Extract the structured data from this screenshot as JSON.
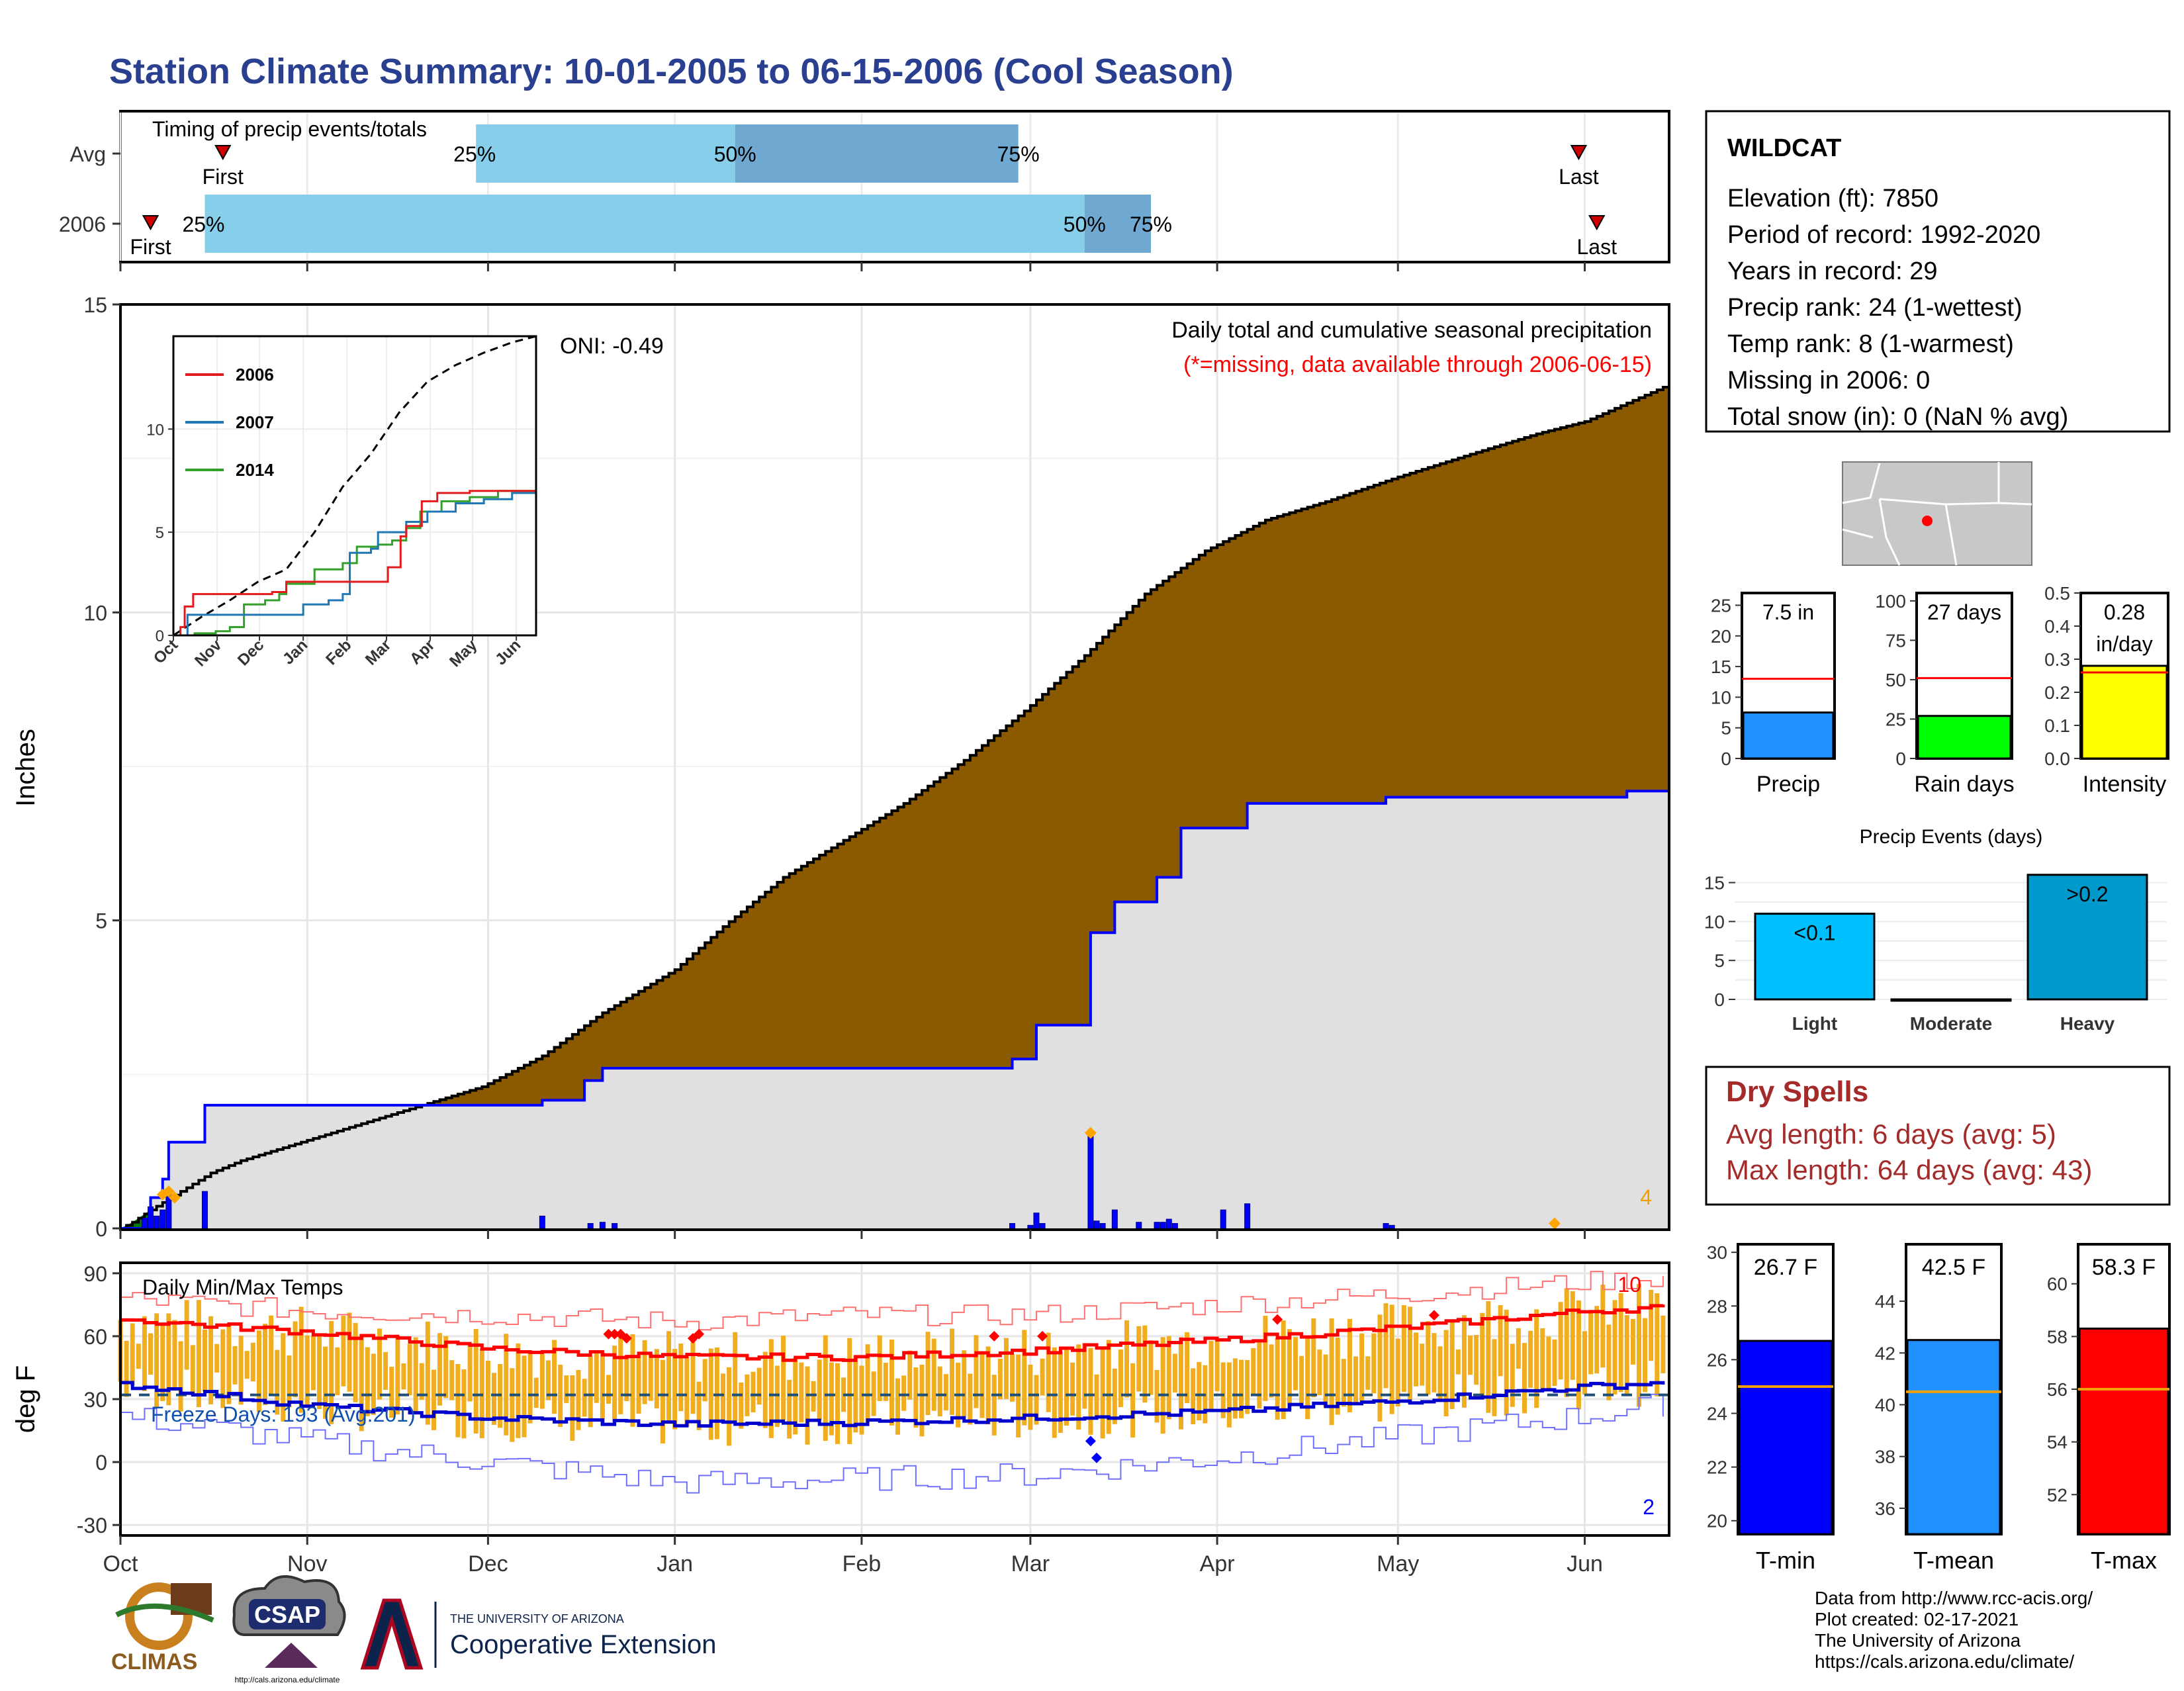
{
  "page_title": "Station Climate Summary: 10-01-2005 to 06-15-2006 (Cool Season)",
  "colors": {
    "title_blue": "#2a3f8f",
    "precip_fill": "#8b5a00",
    "avg_fill": "#e0e0e0",
    "early_fill": "#008000",
    "bar_blue": "#0000ff",
    "temp_bar": "#f0ae1e",
    "dry_red": "#a52a2a",
    "timing_light": "#87ceeb",
    "timing_dark": "#6fa8d0"
  },
  "timing": {
    "title": "Timing of precip events/totals",
    "rows": [
      {
        "label": "Avg",
        "first_day": 17,
        "p25_day": 59,
        "p50_day": 102,
        "p75_day": 149,
        "last_day": 242,
        "first_label": "First",
        "p25_label": "25%",
        "p50_label": "50%",
        "p75_label": "75%",
        "last_label": "Last"
      },
      {
        "label": "2006",
        "first_day": 5,
        "p25_day": 14,
        "p50_day": 160,
        "p75_day": 171,
        "last_day": 245,
        "first_label": "First",
        "p25_label": "25%",
        "p50_label": "50%",
        "p75_label": "75%",
        "last_label": "Last"
      }
    ]
  },
  "chart_data": [
    {
      "type": "area",
      "name": "precip",
      "title": "Daily total and cumulative seasonal precipitation",
      "note": "(*=missing, data available through 2006-06-15)",
      "oni_label": "ONI: -0.49",
      "ylabel": "Inches",
      "ylim": [
        0,
        15
      ],
      "yticks": [
        0,
        5,
        10,
        15
      ],
      "x_months": [
        "Oct",
        "Nov",
        "Dec",
        "Jan",
        "Feb",
        "Mar",
        "Apr",
        "May",
        "Jun"
      ],
      "month_days": [
        0,
        31,
        61,
        92,
        123,
        151,
        182,
        212,
        243
      ],
      "avg_cumulative": [
        [
          0,
          0
        ],
        [
          2,
          0.1
        ],
        [
          5,
          0.3
        ],
        [
          10,
          0.6
        ],
        [
          15,
          0.9
        ],
        [
          20,
          1.1
        ],
        [
          30,
          1.4
        ],
        [
          40,
          1.7
        ],
        [
          50,
          2.0
        ],
        [
          60,
          2.3
        ],
        [
          70,
          2.8
        ],
        [
          80,
          3.5
        ],
        [
          92,
          4.2
        ],
        [
          100,
          4.9
        ],
        [
          110,
          5.7
        ],
        [
          120,
          6.3
        ],
        [
          130,
          6.9
        ],
        [
          140,
          7.6
        ],
        [
          150,
          8.4
        ],
        [
          160,
          9.3
        ],
        [
          170,
          10.3
        ],
        [
          180,
          11.0
        ],
        [
          190,
          11.5
        ],
        [
          200,
          11.8
        ],
        [
          212,
          12.2
        ],
        [
          225,
          12.6
        ],
        [
          235,
          12.9
        ],
        [
          243,
          13.1
        ],
        [
          257,
          13.7
        ]
      ],
      "season_cumulative": [
        [
          0,
          0
        ],
        [
          4,
          0.15
        ],
        [
          5,
          0.5
        ],
        [
          7,
          0.8
        ],
        [
          8,
          1.4
        ],
        [
          14,
          1.4
        ],
        [
          14,
          2.0
        ],
        [
          70,
          2.0
        ],
        [
          70,
          2.08
        ],
        [
          77,
          2.08
        ],
        [
          77,
          2.4
        ],
        [
          80,
          2.4
        ],
        [
          80,
          2.6
        ],
        [
          123,
          2.6
        ],
        [
          148,
          2.6
        ],
        [
          148,
          2.75
        ],
        [
          152,
          2.75
        ],
        [
          152,
          3.3
        ],
        [
          161,
          3.3
        ],
        [
          161,
          4.8
        ],
        [
          165,
          4.8
        ],
        [
          165,
          5.3
        ],
        [
          172,
          5.3
        ],
        [
          172,
          5.7
        ],
        [
          176,
          5.7
        ],
        [
          176,
          6.5
        ],
        [
          187,
          6.5
        ],
        [
          187,
          6.9
        ],
        [
          210,
          6.9
        ],
        [
          210,
          7.0
        ],
        [
          250,
          7.0
        ],
        [
          250,
          7.1
        ],
        [
          257,
          7.5
        ]
      ],
      "daily_bars": [
        [
          4,
          0.15
        ],
        [
          5,
          0.35
        ],
        [
          6,
          0.2
        ],
        [
          7,
          0.3
        ],
        [
          8,
          0.6
        ],
        [
          14,
          0.6
        ],
        [
          70,
          0.2
        ],
        [
          78,
          0.08
        ],
        [
          80,
          0.1
        ],
        [
          82,
          0.08
        ],
        [
          148,
          0.08
        ],
        [
          151,
          0.05
        ],
        [
          152,
          0.25
        ],
        [
          153,
          0.08
        ],
        [
          161,
          1.5
        ],
        [
          162,
          0.12
        ],
        [
          163,
          0.08
        ],
        [
          165,
          0.3
        ],
        [
          169,
          0.1
        ],
        [
          172,
          0.1
        ],
        [
          173,
          0.1
        ],
        [
          174,
          0.15
        ],
        [
          175,
          0.08
        ],
        [
          183,
          0.3
        ],
        [
          187,
          0.4
        ],
        [
          210,
          0.08
        ],
        [
          211,
          0.05
        ]
      ],
      "missing_markers": [
        [
          7,
          0.55
        ],
        [
          8,
          0.6
        ],
        [
          9,
          0.5
        ],
        [
          161,
          1.55
        ],
        [
          238,
          0.08
        ]
      ],
      "corner_count": "4"
    },
    {
      "type": "line",
      "name": "inset",
      "legend": [
        "2006",
        "2007",
        "2014"
      ],
      "xlim": [
        0,
        257
      ],
      "ylim": [
        0,
        14.5
      ],
      "yticks": [
        0,
        5,
        10
      ],
      "x_months": [
        "Oct",
        "Nov",
        "Dec",
        "Jan",
        "Feb",
        "Mar",
        "Apr",
        "May",
        "Jun"
      ],
      "month_days": [
        0,
        31,
        61,
        92,
        123,
        151,
        182,
        212,
        243
      ],
      "avg": [
        [
          0,
          0
        ],
        [
          20,
          0.9
        ],
        [
          40,
          1.7
        ],
        [
          60,
          2.6
        ],
        [
          80,
          3.2
        ],
        [
          100,
          5.0
        ],
        [
          120,
          7.2
        ],
        [
          140,
          8.8
        ],
        [
          160,
          10.8
        ],
        [
          180,
          12.3
        ],
        [
          200,
          13.1
        ],
        [
          220,
          13.7
        ],
        [
          240,
          14.2
        ],
        [
          257,
          14.5
        ]
      ],
      "s2006": [
        [
          0,
          0
        ],
        [
          5,
          0.4
        ],
        [
          8,
          1.4
        ],
        [
          14,
          2.0
        ],
        [
          70,
          2.0
        ],
        [
          70,
          2.1
        ],
        [
          80,
          2.4
        ],
        [
          80,
          2.6
        ],
        [
          148,
          2.6
        ],
        [
          152,
          3.3
        ],
        [
          161,
          3.3
        ],
        [
          161,
          4.8
        ],
        [
          165,
          5.3
        ],
        [
          176,
          6.5
        ],
        [
          187,
          6.9
        ],
        [
          210,
          7.0
        ],
        [
          250,
          7.0
        ],
        [
          257,
          7.5
        ]
      ],
      "s2007": [
        [
          0,
          0
        ],
        [
          10,
          1.0
        ],
        [
          20,
          1.0
        ],
        [
          25,
          1.0
        ],
        [
          60,
          1.0
        ],
        [
          78,
          1.0
        ],
        [
          92,
          1.5
        ],
        [
          110,
          1.7
        ],
        [
          120,
          2.0
        ],
        [
          125,
          4.0
        ],
        [
          140,
          4.2
        ],
        [
          145,
          5.0
        ],
        [
          165,
          5.5
        ],
        [
          180,
          6.0
        ],
        [
          200,
          6.4
        ],
        [
          220,
          6.6
        ],
        [
          240,
          6.9
        ],
        [
          257,
          7.7
        ]
      ],
      "s2014": [
        [
          0,
          0
        ],
        [
          15,
          0.1
        ],
        [
          30,
          0.2
        ],
        [
          40,
          0.4
        ],
        [
          50,
          1.5
        ],
        [
          65,
          1.7
        ],
        [
          75,
          2.0
        ],
        [
          80,
          2.5
        ],
        [
          100,
          3.2
        ],
        [
          120,
          3.5
        ],
        [
          130,
          4.3
        ],
        [
          145,
          4.4
        ],
        [
          155,
          4.6
        ],
        [
          165,
          5.2
        ],
        [
          175,
          6.0
        ],
        [
          190,
          6.5
        ],
        [
          210,
          6.7
        ],
        [
          230,
          7.0
        ],
        [
          257,
          7.2
        ]
      ]
    },
    {
      "type": "bar",
      "name": "temps",
      "title": "Daily Min/Max Temps",
      "ylabel": "deg F",
      "ylim": [
        -35,
        95
      ],
      "yticks": [
        -30,
        0,
        30,
        60,
        90
      ],
      "freeze_label": "Freeze Days: 193 (Avg:201)",
      "freeze_line": 32,
      "max_record_count": "10",
      "min_record_count": "2",
      "x_months": [
        "Oct",
        "Nov",
        "Dec",
        "Jan",
        "Feb",
        "Mar",
        "Apr",
        "May",
        "Jun"
      ],
      "month_days": [
        0,
        31,
        61,
        92,
        123,
        151,
        182,
        212,
        243
      ],
      "avg_max_line": [
        [
          0,
          68
        ],
        [
          10,
          66
        ],
        [
          31,
          62
        ],
        [
          61,
          54
        ],
        [
          92,
          50
        ],
        [
          123,
          50
        ],
        [
          151,
          53
        ],
        [
          182,
          58
        ],
        [
          212,
          64
        ],
        [
          243,
          72
        ],
        [
          257,
          74
        ]
      ],
      "avg_min_line": [
        [
          0,
          37
        ],
        [
          10,
          34
        ],
        [
          31,
          27
        ],
        [
          61,
          21
        ],
        [
          92,
          18
        ],
        [
          123,
          19
        ],
        [
          151,
          21
        ],
        [
          182,
          24
        ],
        [
          212,
          29
        ],
        [
          243,
          36
        ],
        [
          257,
          38
        ]
      ],
      "rec_max_high": [
        [
          0,
          78
        ],
        [
          31,
          72
        ],
        [
          61,
          70
        ],
        [
          92,
          67
        ],
        [
          123,
          70
        ],
        [
          151,
          70
        ],
        [
          182,
          75
        ],
        [
          212,
          80
        ],
        [
          243,
          86
        ],
        [
          257,
          88
        ]
      ],
      "rec_min_low": [
        [
          0,
          22
        ],
        [
          31,
          10
        ],
        [
          61,
          0
        ],
        [
          92,
          -10
        ],
        [
          123,
          -8
        ],
        [
          151,
          -6
        ],
        [
          182,
          2
        ],
        [
          212,
          12
        ],
        [
          243,
          22
        ],
        [
          257,
          28
        ]
      ],
      "record_max_days": [
        [
          81,
          61
        ],
        [
          82,
          61
        ],
        [
          83,
          61
        ],
        [
          84,
          59
        ],
        [
          95,
          59
        ],
        [
          96,
          61
        ],
        [
          145,
          60
        ],
        [
          153,
          60
        ],
        [
          192,
          68
        ],
        [
          218,
          70
        ]
      ],
      "record_min_days": [
        [
          161,
          10
        ],
        [
          162,
          2
        ]
      ]
    },
    {
      "type": "bar",
      "name": "mini_precip",
      "categories": [
        "Precip",
        "Rain days",
        "Intensity"
      ],
      "values": [
        7.5,
        27,
        0.28
      ],
      "averages": [
        13,
        51,
        0.26
      ],
      "labels": [
        "7.5 in",
        "27 days",
        "0.28"
      ],
      "unit_sub": [
        "",
        "",
        "in/day"
      ],
      "ylims": [
        [
          0,
          27
        ],
        [
          0,
          105
        ],
        [
          0,
          0.5
        ]
      ],
      "yticks": [
        [
          0,
          5,
          10,
          15,
          20,
          25
        ],
        [
          0,
          25,
          50,
          75,
          100
        ],
        [
          0.0,
          0.1,
          0.2,
          0.3,
          0.4,
          0.5
        ]
      ],
      "colors": [
        "#1e90ff",
        "#00ff00",
        "#ffff00"
      ]
    },
    {
      "type": "bar",
      "name": "events",
      "title": "Precip Events (days)",
      "categories": [
        "Light",
        "Moderate",
        "Heavy"
      ],
      "values": [
        11,
        0,
        16
      ],
      "bar_labels": [
        "<0.1",
        "",
        ">0.2"
      ],
      "ylim": [
        0,
        17
      ],
      "yticks": [
        0,
        5,
        10,
        15
      ],
      "colors": [
        "#00bfff",
        "#00bfff",
        "#0099cc"
      ]
    },
    {
      "type": "bar",
      "name": "mini_temps",
      "categories": [
        "T-min",
        "T-mean",
        "T-max"
      ],
      "values": [
        26.7,
        42.5,
        58.3
      ],
      "averages": [
        25.0,
        40.5,
        56.0
      ],
      "labels": [
        "26.7 F",
        "42.5 F",
        "58.3 F"
      ],
      "ylims": [
        [
          19.5,
          30.3
        ],
        [
          35,
          46.2
        ],
        [
          50.5,
          61.5
        ]
      ],
      "yticks": [
        [
          20,
          22,
          24,
          26,
          28,
          30
        ],
        [
          36,
          38,
          40,
          42,
          44
        ],
        [
          52,
          54,
          56,
          58,
          60
        ]
      ],
      "colors": [
        "#0000ff",
        "#1e90ff",
        "#ff0000"
      ]
    }
  ],
  "station": {
    "name": "WILDCAT",
    "lines": [
      "Elevation (ft): 7850",
      "Period of record: 1992-2020",
      "Years in record: 29",
      "Precip rank: 24 (1-wettest)",
      "Temp rank: 8 (1-warmest)",
      "Missing in 2006: 0",
      "Total snow (in): 0 (NaN % avg)"
    ]
  },
  "dry_spells": {
    "title": "Dry Spells",
    "avg_line": "Avg length: 6 days (avg: 5)",
    "max_line": "Max length: 64 days (avg: 43)"
  },
  "credits": [
    "Data from http://www.rcc-acis.org/",
    "Plot created: 02-17-2021",
    "The University of Arizona",
    "https://cals.arizona.edu/climate/"
  ],
  "logos": {
    "climas": "CLIMAS",
    "csap": "CSAP",
    "csap_url": "http://cals.arizona.edu/climate",
    "ua_small": "THE UNIVERSITY OF ARIZONA",
    "coop": "Cooperative Extension"
  }
}
